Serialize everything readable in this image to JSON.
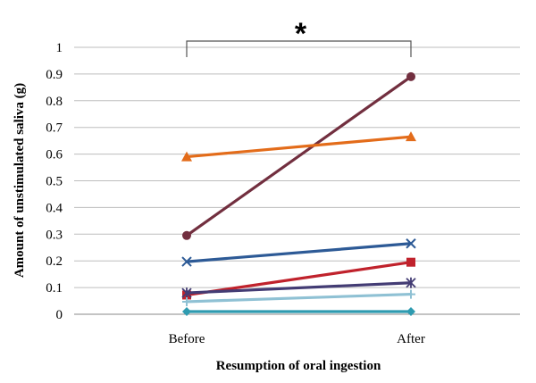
{
  "chart_data": {
    "type": "line",
    "title": "",
    "xlabel": "Resumption of oral ingestion",
    "ylabel": "Amount of unstimulated saliva (g)",
    "categories": [
      "Before",
      "After"
    ],
    "ylim": [
      0,
      1
    ],
    "yticks": [
      "0",
      "0.1",
      "0.2",
      "0.3",
      "0.4",
      "0.5",
      "0.6",
      "0.7",
      "0.8",
      "0.9",
      "1"
    ],
    "grid": true,
    "legend": "none",
    "annotation": "*",
    "series": [
      {
        "values": [
          0.295,
          0.89
        ],
        "color": "#722f3f",
        "marker": "circle"
      },
      {
        "values": [
          0.59,
          0.665
        ],
        "color": "#e36c1a",
        "marker": "triangle"
      },
      {
        "values": [
          0.197,
          0.265
        ],
        "color": "#2d5a96",
        "marker": "x"
      },
      {
        "values": [
          0.072,
          0.195
        ],
        "color": "#c0222c",
        "marker": "square"
      },
      {
        "values": [
          0.08,
          0.118
        ],
        "color": "#433c74",
        "marker": "star"
      },
      {
        "values": [
          0.047,
          0.075
        ],
        "color": "#8fc1d4",
        "marker": "plus"
      },
      {
        "values": [
          0.01,
          0.01
        ],
        "color": "#2e9bb0",
        "marker": "diamond"
      }
    ]
  }
}
